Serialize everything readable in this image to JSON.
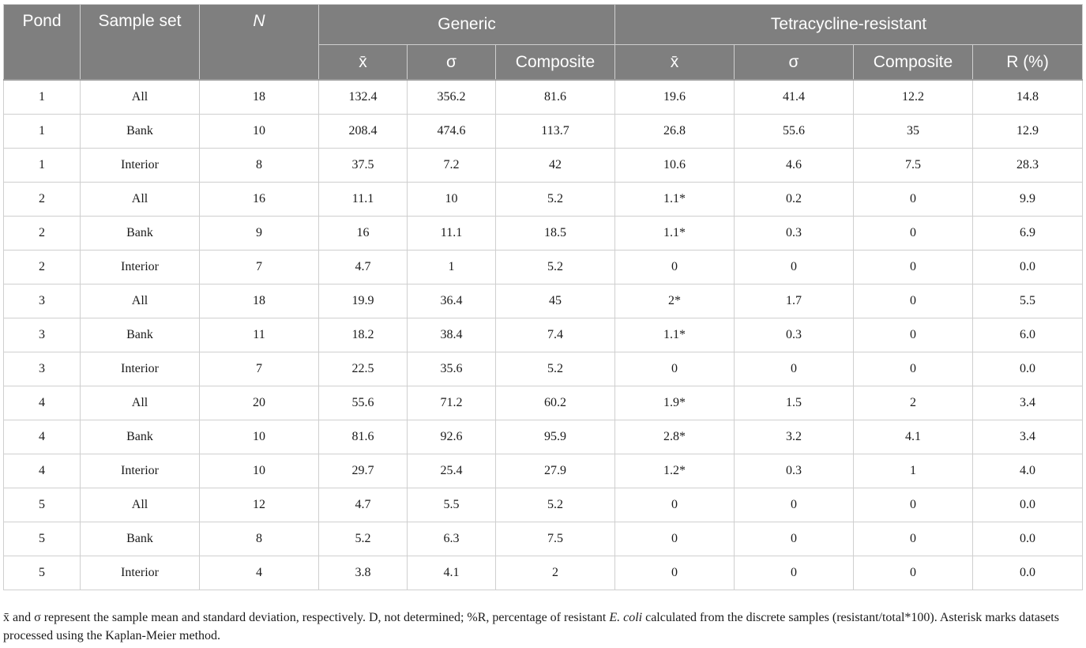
{
  "headers": {
    "pond": "Pond",
    "sample_set": "Sample set",
    "n": "N",
    "generic": "Generic",
    "tetracycline": "Tetracycline-resistant",
    "mean": "x̄",
    "sigma": "σ",
    "composite": "Composite",
    "r_pct": "R (%)"
  },
  "rows": [
    [
      "1",
      "All",
      "18",
      "132.4",
      "356.2",
      "81.6",
      "19.6",
      "41.4",
      "12.2",
      "14.8"
    ],
    [
      "1",
      "Bank",
      "10",
      "208.4",
      "474.6",
      "113.7",
      "26.8",
      "55.6",
      "35",
      "12.9"
    ],
    [
      "1",
      "Interior",
      "8",
      "37.5",
      "7.2",
      "42",
      "10.6",
      "4.6",
      "7.5",
      "28.3"
    ],
    [
      "2",
      "All",
      "16",
      "11.1",
      "10",
      "5.2",
      "1.1*",
      "0.2",
      "0",
      "9.9"
    ],
    [
      "2",
      "Bank",
      "9",
      "16",
      "11.1",
      "18.5",
      "1.1*",
      "0.3",
      "0",
      "6.9"
    ],
    [
      "2",
      "Interior",
      "7",
      "4.7",
      "1",
      "5.2",
      "0",
      "0",
      "0",
      "0.0"
    ],
    [
      "3",
      "All",
      "18",
      "19.9",
      "36.4",
      "45",
      "2*",
      "1.7",
      "0",
      "5.5"
    ],
    [
      "3",
      "Bank",
      "11",
      "18.2",
      "38.4",
      "7.4",
      "1.1*",
      "0.3",
      "0",
      "6.0"
    ],
    [
      "3",
      "Interior",
      "7",
      "22.5",
      "35.6",
      "5.2",
      "0",
      "0",
      "0",
      "0.0"
    ],
    [
      "4",
      "All",
      "20",
      "55.6",
      "71.2",
      "60.2",
      "1.9*",
      "1.5",
      "2",
      "3.4"
    ],
    [
      "4",
      "Bank",
      "10",
      "81.6",
      "92.6",
      "95.9",
      "2.8*",
      "3.2",
      "4.1",
      "3.4"
    ],
    [
      "4",
      "Interior",
      "10",
      "29.7",
      "25.4",
      "27.9",
      "1.2*",
      "0.3",
      "1",
      "4.0"
    ],
    [
      "5",
      "All",
      "12",
      "4.7",
      "5.5",
      "5.2",
      "0",
      "0",
      "0",
      "0.0"
    ],
    [
      "5",
      "Bank",
      "8",
      "5.2",
      "6.3",
      "7.5",
      "0",
      "0",
      "0",
      "0.0"
    ],
    [
      "5",
      "Interior",
      "4",
      "3.8",
      "4.1",
      "2",
      "0",
      "0",
      "0",
      "0.0"
    ]
  ],
  "footnote": {
    "part1": "x̄ and σ represent the sample mean and standard deviation, respectively. D, not determined; %R, percentage of resistant ",
    "italic": "E. coli",
    "part2": " calculated from the discrete samples (resistant/total*100). Asterisk marks datasets processed using the Kaplan-Meier method."
  },
  "colors": {
    "header_bg": "#7f7f7f",
    "header_text": "#ffffff",
    "grid": "#cfcfcf"
  }
}
